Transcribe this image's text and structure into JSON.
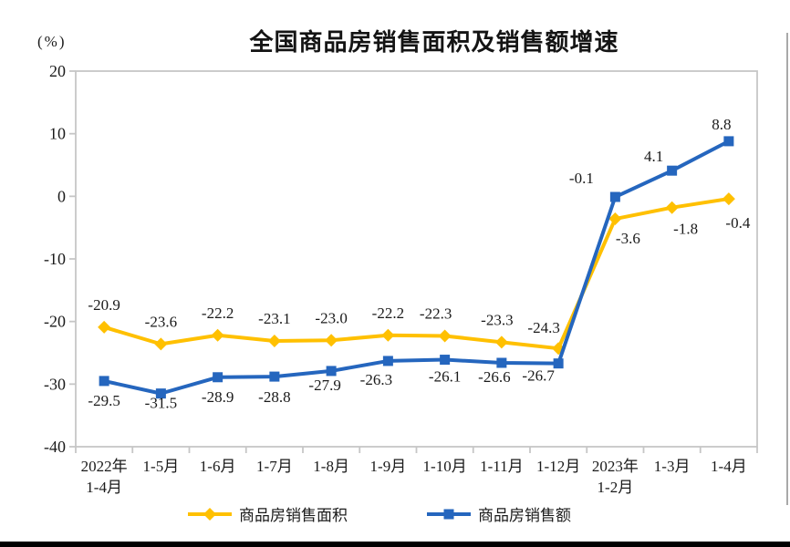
{
  "chart_data": {
    "type": "line",
    "title": "全国商品房销售面积及销售额增速",
    "unit": "(%)",
    "categories": [
      [
        "2022年",
        "1-4月"
      ],
      [
        "1-5月"
      ],
      [
        "1-6月"
      ],
      [
        "1-7月"
      ],
      [
        "1-8月"
      ],
      [
        "1-9月"
      ],
      [
        "1-10月"
      ],
      [
        "1-11月"
      ],
      [
        "1-12月"
      ],
      [
        "2023年",
        "1-2月"
      ],
      [
        "1-3月"
      ],
      [
        "1-4月"
      ]
    ],
    "ylim": [
      -40,
      20
    ],
    "yticks": [
      20,
      10,
      0,
      -10,
      -20,
      -30,
      -40
    ],
    "grid": false,
    "legend_position": "bottom",
    "series": [
      {
        "name": "商品房销售面积",
        "color": "#FFC000",
        "marker": "diamond",
        "values": [
          -20.9,
          -23.6,
          -22.2,
          -23.1,
          -23.0,
          -22.2,
          -22.3,
          -23.3,
          -24.3,
          -3.6,
          -1.8,
          -0.4
        ],
        "label_offsets": [
          [
            0,
            -19
          ],
          [
            0,
            -19
          ],
          [
            0,
            -19
          ],
          [
            0,
            -19
          ],
          [
            0,
            -19
          ],
          [
            0,
            -19
          ],
          [
            -10,
            -19
          ],
          [
            -5,
            -19
          ],
          [
            -16,
            -17
          ],
          [
            14,
            27
          ],
          [
            15,
            29
          ],
          [
            10,
            32
          ]
        ]
      },
      {
        "name": "商品房销售额",
        "color": "#2566BE",
        "marker": "square",
        "values": [
          -29.5,
          -31.5,
          -28.9,
          -28.8,
          -27.9,
          -26.3,
          -26.1,
          -26.6,
          -26.7,
          -0.1,
          4.1,
          8.8
        ],
        "label_offsets": [
          [
            0,
            27
          ],
          [
            0,
            16
          ],
          [
            0,
            27
          ],
          [
            0,
            28
          ],
          [
            -7,
            21
          ],
          [
            -13,
            26
          ],
          [
            0,
            24
          ],
          [
            -8,
            21
          ],
          [
            -22,
            19
          ],
          [
            -37,
            -15
          ],
          [
            -20,
            -10
          ],
          [
            -8,
            -13
          ]
        ]
      }
    ]
  },
  "colors": {
    "axis_border": "#c6c6c6",
    "label": "#1a1a1a",
    "bottom_bar": "#000000",
    "right_edge": "#a9a9a9"
  }
}
